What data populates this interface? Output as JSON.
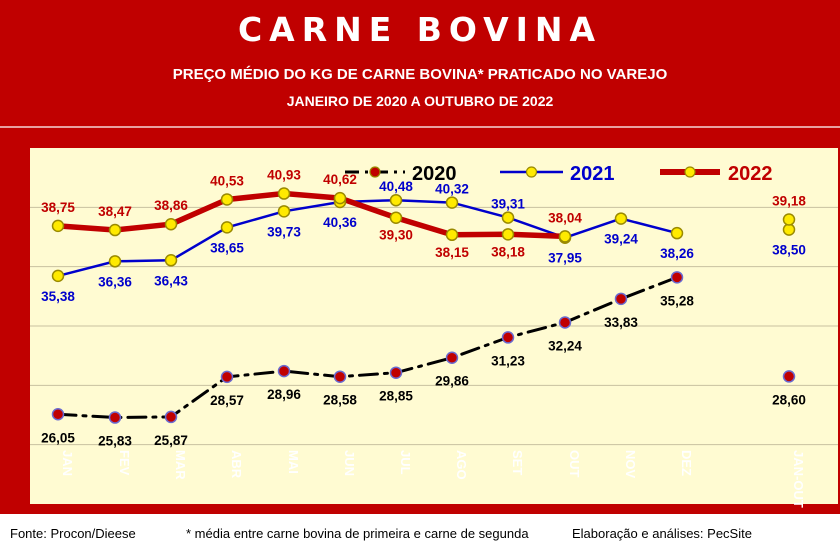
{
  "header": {
    "title": "CARNE BOVINA",
    "subtitle": "PREÇO MÉDIO DO KG DE CARNE BOVINA* PRATICADO NO VAREJO",
    "period": "JANEIRO DE 2020 A OUTUBRO DE 2022"
  },
  "footer": {
    "source": "Fonte: Procon/Dieese",
    "note": "* média entre carne bovina de primeira e carne de segunda",
    "credit": "Elaboração e análises: PecSite"
  },
  "colors": {
    "frame": "#c00000",
    "plot_bg": "#fffbd2",
    "series_2020": "#000000",
    "series_2021": "#0000cc",
    "series_2022": "#c00000",
    "marker_yellow": "#ffea00"
  },
  "chart_data": {
    "type": "line",
    "title": "PREÇO MÉDIO DO KG DE CARNE BOVINA* PRATICADO NO VAREJO",
    "categories": [
      "JAN",
      "FEV",
      "MAR",
      "ABR",
      "MAI",
      "JUN",
      "JUL",
      "AGO",
      "SET",
      "OUT",
      "NOV",
      "DEZ",
      "JAN-OUT"
    ],
    "series": [
      {
        "name": "2020",
        "values": [
          26.05,
          25.83,
          25.87,
          28.57,
          28.96,
          28.58,
          28.85,
          29.86,
          31.23,
          32.24,
          33.83,
          35.28,
          28.6
        ],
        "labels": [
          "26,05",
          "25,83",
          "25,87",
          "28,57",
          "28,96",
          "28,58",
          "28,85",
          "29,86",
          "31,23",
          "32,24",
          "33,83",
          "35,28",
          "28,60"
        ]
      },
      {
        "name": "2021",
        "values": [
          35.38,
          36.36,
          36.43,
          38.65,
          39.73,
          40.36,
          40.48,
          40.32,
          39.31,
          37.95,
          39.24,
          38.26,
          38.5
        ],
        "labels": [
          "35,38",
          "36,36",
          "36,43",
          "38,65",
          "39,73",
          "40,36",
          "40,48",
          "40,32",
          "39,31",
          "37,95",
          "39,24",
          "38,26",
          "38,50"
        ]
      },
      {
        "name": "2022",
        "values": [
          38.75,
          38.47,
          38.86,
          40.53,
          40.93,
          40.62,
          39.3,
          38.15,
          38.18,
          38.04,
          null,
          null,
          39.18
        ],
        "labels": [
          "38,75",
          "38,47",
          "38,86",
          "40,53",
          "40,93",
          "40,62",
          "39,30",
          "38,15",
          "38,18",
          "38,04",
          "",
          "",
          "39,18"
        ]
      }
    ],
    "ylim": [
      20,
      44
    ],
    "grid": true,
    "legend": "top-right"
  }
}
